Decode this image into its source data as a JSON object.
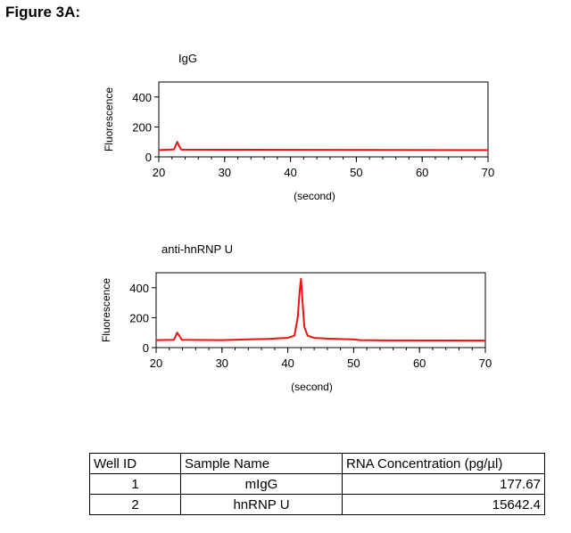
{
  "figure_label": "Figure 3A:",
  "chart_data": [
    {
      "type": "line",
      "title": "IgG",
      "xlabel": "(second)",
      "ylabel": "Fluorescence",
      "xlim": [
        20,
        70
      ],
      "ylim": [
        0,
        500
      ],
      "xticks": [
        20,
        30,
        40,
        50,
        60,
        70
      ],
      "yticks": [
        0,
        200,
        400
      ],
      "line_color": "#ee1111",
      "grid": false,
      "series": [
        {
          "x": [
            20,
            22.3,
            22.6,
            22.8,
            23.0,
            23.4,
            70
          ],
          "y": [
            45,
            50,
            80,
            100,
            80,
            48,
            45
          ]
        }
      ]
    },
    {
      "type": "line",
      "title": "anti-hnRNP U",
      "xlabel": "(second)",
      "ylabel": "Fluorescence",
      "xlim": [
        20,
        70
      ],
      "ylim": [
        0,
        500
      ],
      "xticks": [
        20,
        30,
        40,
        50,
        60,
        70
      ],
      "yticks": [
        0,
        200,
        400
      ],
      "line_color": "#ee1111",
      "grid": false,
      "series": [
        {
          "x": [
            20,
            22.7,
            23.0,
            23.2,
            23.5,
            23.9,
            30,
            34,
            37,
            38.5,
            40,
            41,
            41.5,
            41.8,
            42.0,
            42.2,
            42.5,
            43,
            44,
            46,
            50,
            51,
            55,
            70
          ],
          "y": [
            50,
            52,
            80,
            100,
            80,
            52,
            50,
            55,
            58,
            62,
            65,
            80,
            200,
            380,
            460,
            330,
            140,
            80,
            65,
            60,
            55,
            50,
            48,
            47
          ]
        }
      ]
    }
  ],
  "table": {
    "headers": [
      "Well ID",
      "Sample Name",
      "RNA Concentration (pg/µl)"
    ],
    "rows": [
      [
        "1",
        "mIgG",
        "177.67"
      ],
      [
        "2",
        "hnRNP U",
        "15642.4"
      ]
    ]
  }
}
